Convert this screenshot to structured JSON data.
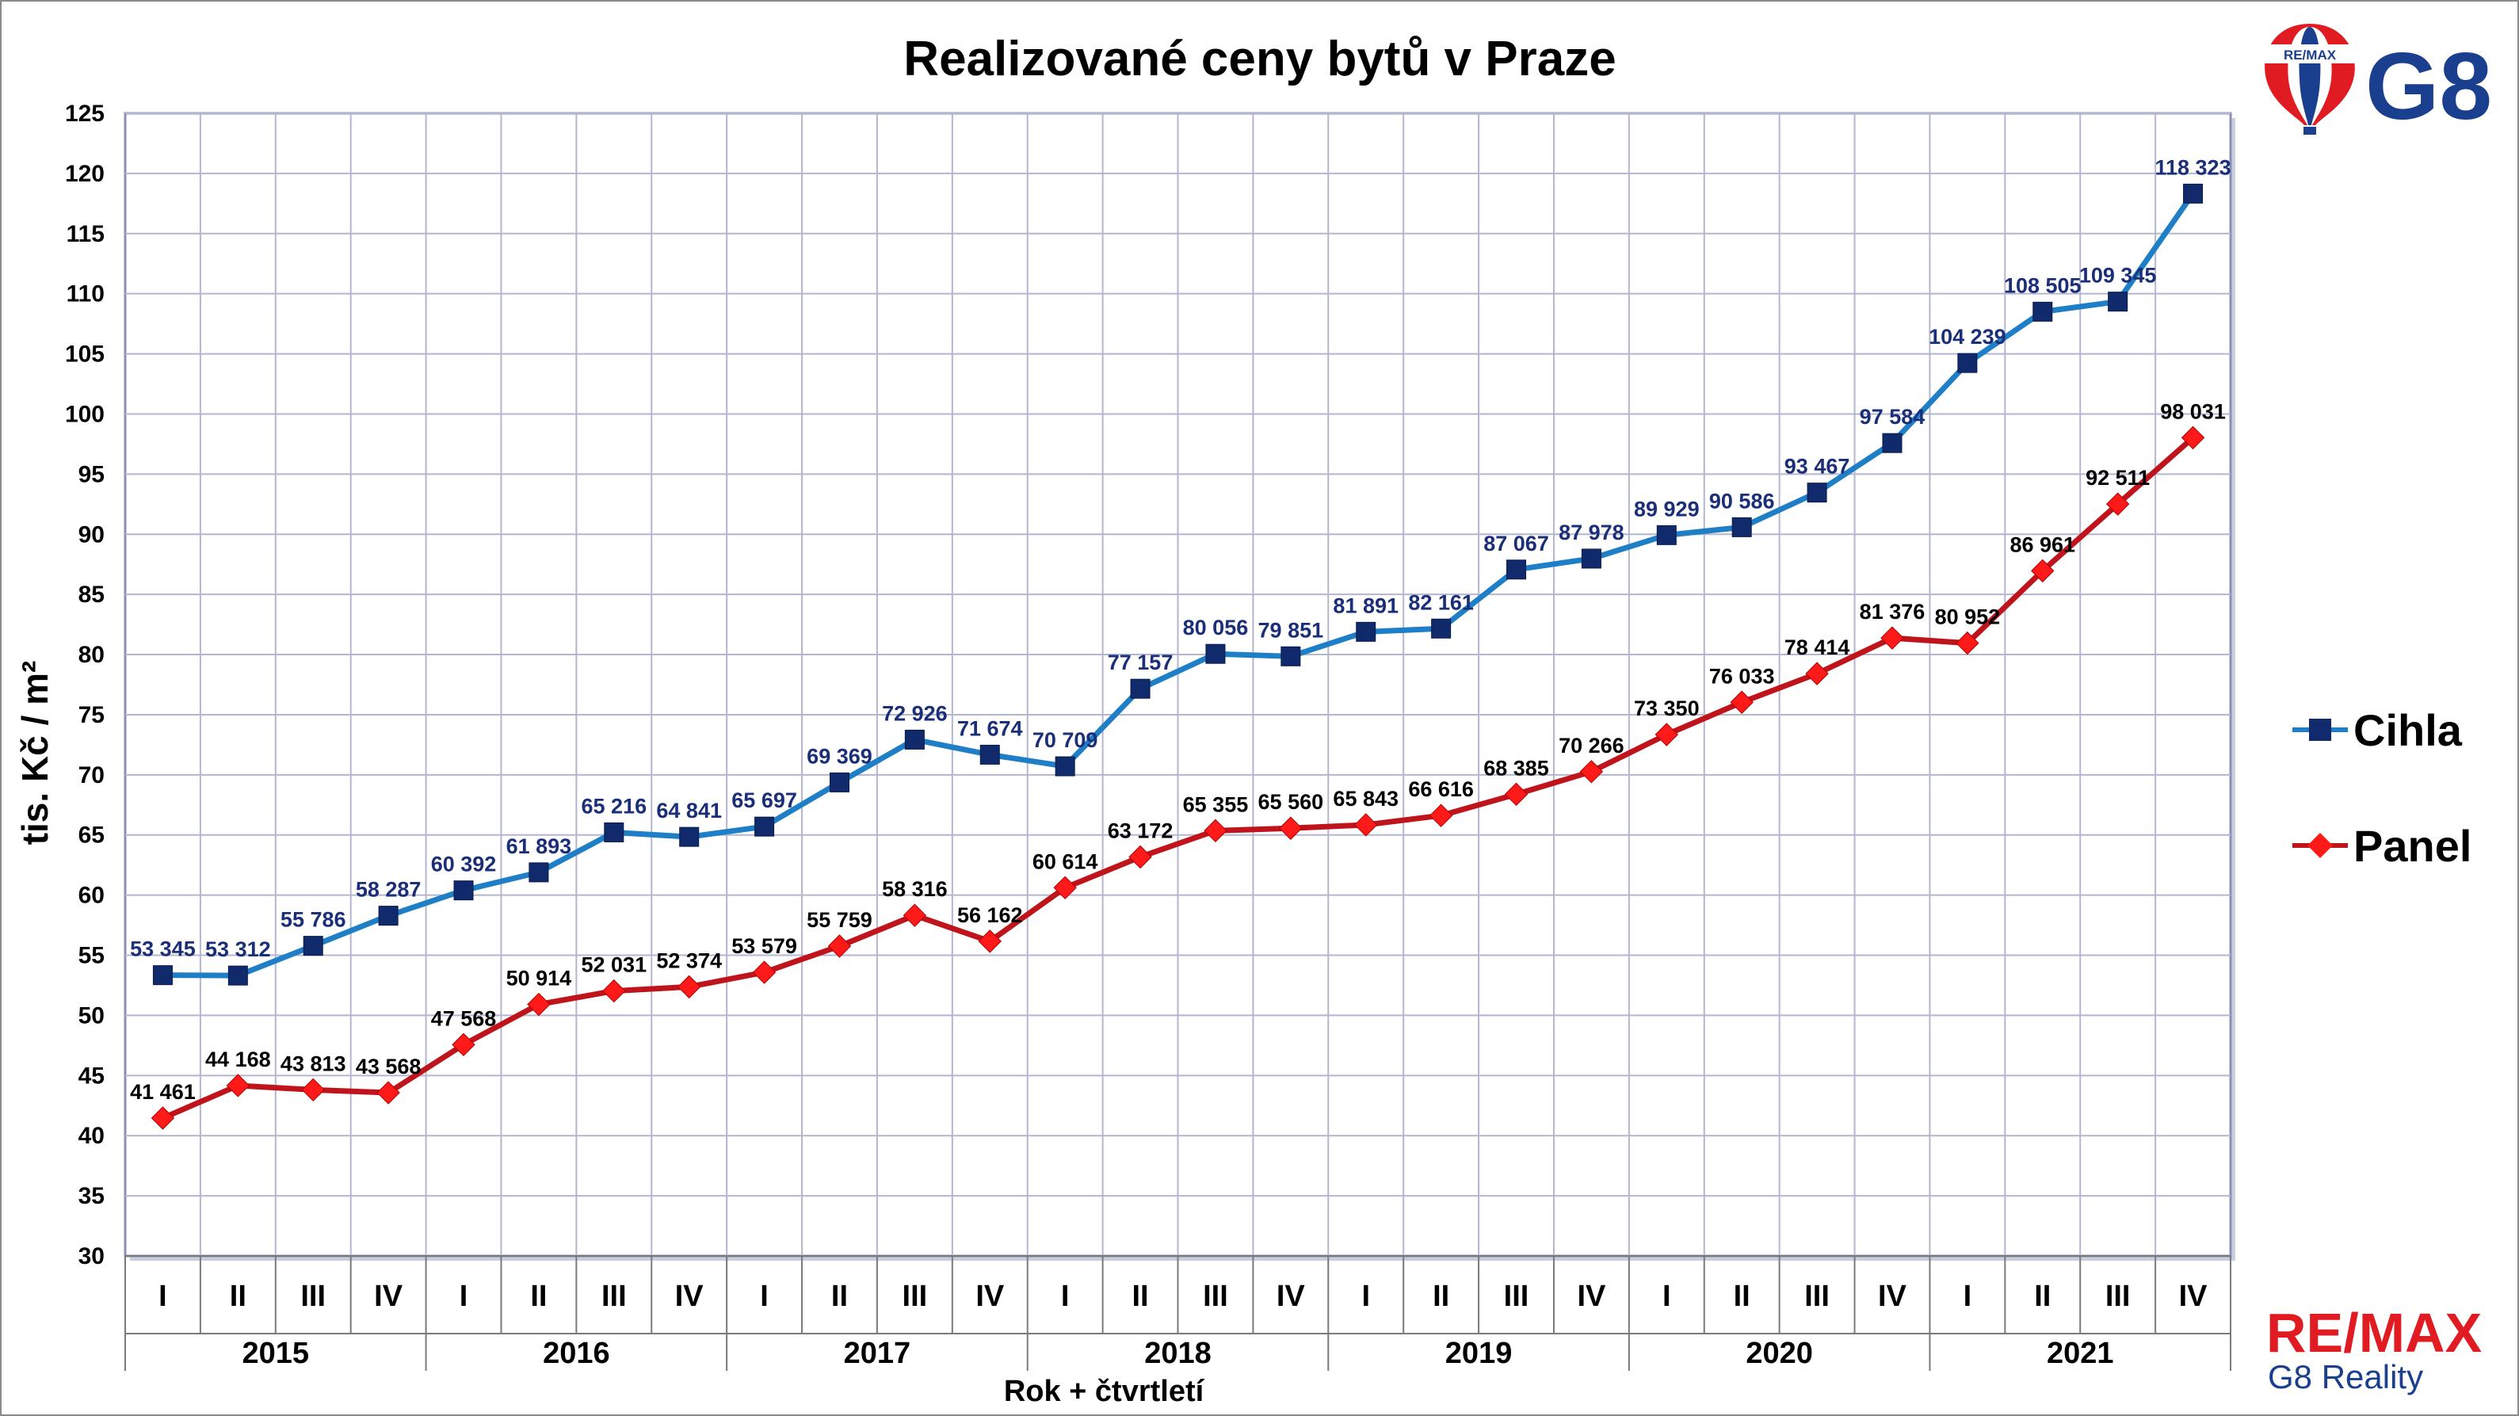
{
  "chart_data": {
    "type": "line",
    "title": "Realizované ceny bytů v Praze",
    "ylabel": "tis. Kč / m²",
    "xlabel": "Rok + čtvrtletí",
    "ylim": [
      30,
      125
    ],
    "yticks": [
      30,
      35,
      40,
      45,
      50,
      55,
      60,
      65,
      70,
      75,
      80,
      85,
      90,
      95,
      100,
      105,
      110,
      115,
      120,
      125
    ],
    "quarters": [
      "I",
      "II",
      "III",
      "IV",
      "I",
      "II",
      "III",
      "IV",
      "I",
      "II",
      "III",
      "IV",
      "I",
      "II",
      "III",
      "IV",
      "I",
      "II",
      "III",
      "IV",
      "I",
      "II",
      "III",
      "IV",
      "I",
      "II",
      "III",
      "IV"
    ],
    "years": [
      "2015",
      "2016",
      "2017",
      "2018",
      "2019",
      "2020",
      "2021"
    ],
    "grid": true,
    "legend_position": "right",
    "series": [
      {
        "name": "Cihla",
        "color": "#1f7fc6",
        "marker_color": "#102a6b",
        "marker": "square",
        "label_color": "#1b2f78",
        "values": [
          53.345,
          53.312,
          55.786,
          58.287,
          60.392,
          61.893,
          65.216,
          64.841,
          65.697,
          69.369,
          72.926,
          71.674,
          70.709,
          77.157,
          80.056,
          79.851,
          81.891,
          82.161,
          87.067,
          87.978,
          89.929,
          90.586,
          93.467,
          97.584,
          104.239,
          108.505,
          109.345,
          118.323
        ],
        "labels": [
          "53 345",
          "53 312",
          "55 786",
          "58 287",
          "60 392",
          "61 893",
          "65 216",
          "64 841",
          "65 697",
          "69 369",
          "72 926",
          "71 674",
          "70 709",
          "77 157",
          "80 056",
          "79 851",
          "81 891",
          "82 161",
          "87 067",
          "87 978",
          "89 929",
          "90 586",
          "93 467",
          "97 584",
          "104 239",
          "108 505",
          "109 345",
          "118 323"
        ]
      },
      {
        "name": "Panel",
        "color": "#c0141c",
        "marker_color": "#ff1a1a",
        "marker": "diamond",
        "label_color": "#000000",
        "values": [
          41.461,
          44.168,
          43.813,
          43.568,
          47.568,
          50.914,
          52.031,
          52.374,
          53.579,
          55.759,
          58.316,
          56.162,
          60.614,
          63.172,
          65.355,
          65.56,
          65.843,
          66.616,
          68.385,
          70.266,
          73.35,
          76.033,
          78.414,
          81.376,
          80.952,
          86.961,
          92.511,
          98.031
        ],
        "labels": [
          "41 461",
          "44 168",
          "43 813",
          "43 568",
          "47 568",
          "50 914",
          "52 031",
          "52 374",
          "53 579",
          "55 759",
          "58 316",
          "56 162",
          "60 614",
          "63 172",
          "65 355",
          "65 560",
          "65 843",
          "66 616",
          "68 385",
          "70 266",
          "73 350",
          "76 033",
          "78 414",
          "81 376",
          "80 952",
          "86 961",
          "92 511",
          "98 031"
        ]
      }
    ]
  },
  "branding": {
    "balloon_text": "RE/MAX",
    "g8_text": "G8",
    "remax_text": "RE/MAX",
    "reality_text": "G8 Reality",
    "brand_blue": "#1b3f8f",
    "brand_red": "#e11b22"
  }
}
